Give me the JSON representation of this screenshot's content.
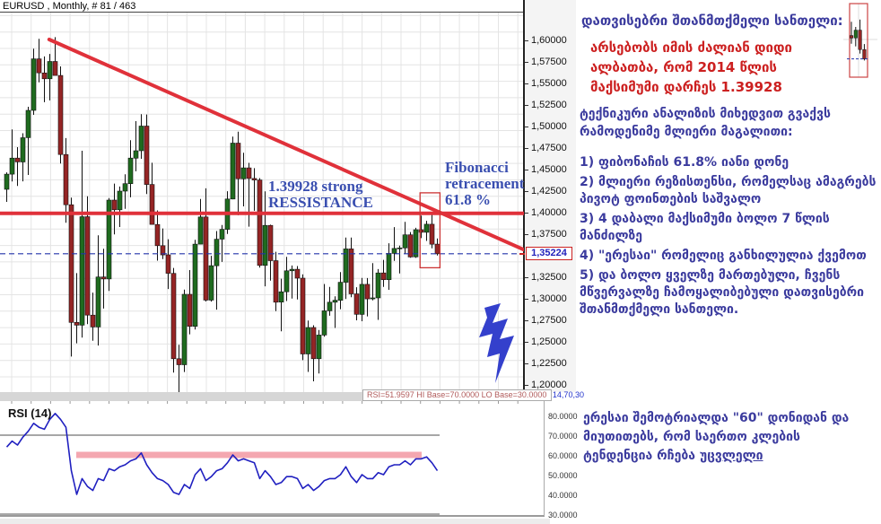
{
  "window": {
    "title": "EURUSD , Monthly, # 81 / 463"
  },
  "colors": {
    "up_candle": "#1f6b1f",
    "down_candle": "#952525",
    "wick": "#111111",
    "trend_red": "#e0313a",
    "annotation_blue": "#3a4fb0",
    "georgian_blue": "#3b3b9e",
    "alert_red": "#cc2020",
    "rsi_line": "#2020c0",
    "pink_band": "#f4a7b0",
    "dashed_blue": "#2233aa",
    "lightning_blue": "#3440cc",
    "grid": "#e4e4e4"
  },
  "price_axis": {
    "labels": [
      {
        "v": 1.6,
        "t": "1,60000"
      },
      {
        "v": 1.575,
        "t": "1,57500"
      },
      {
        "v": 1.55,
        "t": "1,55000"
      },
      {
        "v": 1.525,
        "t": "1,52500"
      },
      {
        "v": 1.5,
        "t": "1,50000"
      },
      {
        "v": 1.475,
        "t": "1,47500"
      },
      {
        "v": 1.45,
        "t": "1,45000"
      },
      {
        "v": 1.425,
        "t": "1,42500"
      },
      {
        "v": 1.4,
        "t": "1,40000"
      },
      {
        "v": 1.375,
        "t": "1,37500"
      },
      {
        "v": 1.325,
        "t": "1,32500"
      },
      {
        "v": 1.3,
        "t": "1,30000"
      },
      {
        "v": 1.275,
        "t": "1,27500"
      },
      {
        "v": 1.25,
        "t": "1,25000"
      },
      {
        "v": 1.225,
        "t": "1,22500"
      },
      {
        "v": 1.2,
        "t": "1,20000"
      }
    ],
    "current_price_label": "1,35224",
    "current_price": 1.35224
  },
  "annotations": {
    "resistance_line1": "1.39928 strong",
    "resistance_line2": "RESSISTANCE",
    "fib_line1": "Fibonacci",
    "fib_line2": "retracement",
    "fib_line3": "61.8 %"
  },
  "rsi_panel": {
    "label": "RSI (14)",
    "status_text": "RSI=51.9597 HI Base=70.0000 LO Base=30.0000",
    "params_text": "14,70,30",
    "axis_labels": [
      {
        "v": 80,
        "t": "80.0000"
      },
      {
        "v": 70,
        "t": "70.0000"
      },
      {
        "v": 60,
        "t": "60.0000"
      },
      {
        "v": 50,
        "t": "50.0000"
      },
      {
        "v": 40,
        "t": "40.0000"
      },
      {
        "v": 30,
        "t": "30.0000"
      }
    ]
  },
  "side_panel": {
    "header": "დათვისებრი შთანმთქმელი სანთელი:",
    "alert_text": "არსებობს იმის ძალიან დიდი ალბათბა, რომ 2014 წლის მაქსიმუმი დარჩეს  1.39928",
    "intro": "ტექნიკური ანალიზის მიხედვით გვაქვს რამოდენიმე მლიერი მაგალითი:",
    "list": [
      "1) ფიბონაჩის 61.8% იანი დონე",
      "2) მლიერი რეზისთენსი, რომელსაც ამაგრებს პივოტ ფოინთების საშვალო",
      "3) 4 დაბალი მაქსიმუმი ბოლო 7 წლის მანძილზე",
      "4) \"ერესაი\" რომელიც განხილულია ქვემოთ",
      "5) და ბოლო ყველზე მართებული, ჩვენს მწვერვალზე ჩამოყალიბებული დათვისებრი შთანმთქმელი სანთელი."
    ],
    "note_part1": "ერესაი შემოტრიალდა \"60\" დონიდან და მიუთითებს, რომ საერთო კლების ტენდენცია რჩება ",
    "note_underlined": "უცვლელი"
  },
  "chart_data": {
    "type": "candlestick",
    "symbol": "EURUSD",
    "timeframe": "Monthly",
    "bars_shown": 81,
    "bars_total": 463,
    "price_range": [
      1.2,
      1.6
    ],
    "resistance_price": 1.39928,
    "current_price": 1.35224,
    "fibonacci_level_pct": 61.8,
    "candles_ohlc": [
      [
        1.4271,
        1.4468,
        1.4125,
        1.4447
      ],
      [
        1.4447,
        1.4966,
        1.4362,
        1.4633
      ],
      [
        1.4633,
        1.476,
        1.4309,
        1.4589
      ],
      [
        1.4589,
        1.4922,
        1.4364,
        1.487
      ],
      [
        1.487,
        1.5229,
        1.4437,
        1.5187
      ],
      [
        1.5187,
        1.5903,
        1.5135,
        1.5785
      ],
      [
        1.5785,
        1.6019,
        1.5512,
        1.5622
      ],
      [
        1.5622,
        1.5814,
        1.5282,
        1.5554
      ],
      [
        1.5554,
        1.5843,
        1.5303,
        1.5755
      ],
      [
        1.5755,
        1.6038,
        1.5611,
        1.5593
      ],
      [
        1.5593,
        1.5698,
        1.457,
        1.4675
      ],
      [
        1.4675,
        1.4866,
        1.3882,
        1.4092
      ],
      [
        1.4092,
        1.4175,
        1.2329,
        1.2726
      ],
      [
        1.2726,
        1.3298,
        1.2483,
        1.2694
      ],
      [
        1.2694,
        1.4719,
        1.2549,
        1.3953
      ],
      [
        1.3953,
        1.4191,
        1.2706,
        1.281
      ],
      [
        1.281,
        1.3072,
        1.2513,
        1.2673
      ],
      [
        1.2673,
        1.3738,
        1.2457,
        1.3253
      ],
      [
        1.3253,
        1.358,
        1.2886,
        1.323
      ],
      [
        1.323,
        1.4169,
        1.3092,
        1.4146
      ],
      [
        1.4146,
        1.4338,
        1.3748,
        1.4033
      ],
      [
        1.4033,
        1.4303,
        1.3833,
        1.425
      ],
      [
        1.425,
        1.4446,
        1.4045,
        1.4336
      ],
      [
        1.4336,
        1.4842,
        1.4178,
        1.4633
      ],
      [
        1.4633,
        1.5063,
        1.448,
        1.4719
      ],
      [
        1.4719,
        1.5144,
        1.4625,
        1.5005
      ],
      [
        1.5005,
        1.514,
        1.4216,
        1.4327
      ],
      [
        1.4327,
        1.4579,
        1.3862,
        1.3863
      ],
      [
        1.3863,
        1.4026,
        1.3443,
        1.3617
      ],
      [
        1.3617,
        1.3817,
        1.3461,
        1.351
      ],
      [
        1.351,
        1.3692,
        1.3114,
        1.3295
      ],
      [
        1.3295,
        1.3358,
        1.2143,
        1.2304
      ],
      [
        1.2304,
        1.2467,
        1.1876,
        1.2234
      ],
      [
        1.2234,
        1.3106,
        1.215,
        1.3052
      ],
      [
        1.3052,
        1.3333,
        1.2588,
        1.268
      ],
      [
        1.268,
        1.3684,
        1.2643,
        1.3634
      ],
      [
        1.3634,
        1.4159,
        1.3634,
        1.395
      ],
      [
        1.395,
        1.4282,
        1.2969,
        1.2984
      ],
      [
        1.2984,
        1.3499,
        1.2968,
        1.3384
      ],
      [
        1.3384,
        1.3786,
        1.2874,
        1.3692
      ],
      [
        1.3692,
        1.3856,
        1.3428,
        1.3806
      ],
      [
        1.3806,
        1.4249,
        1.3752,
        1.4158
      ],
      [
        1.4158,
        1.4882,
        1.4155,
        1.4807
      ],
      [
        1.4807,
        1.494,
        1.397,
        1.4393
      ],
      [
        1.4393,
        1.4696,
        1.4073,
        1.452
      ],
      [
        1.452,
        1.4578,
        1.3837,
        1.4397
      ],
      [
        1.4397,
        1.4517,
        1.4022,
        1.4379
      ],
      [
        1.4379,
        1.4401,
        1.3362,
        1.3387
      ],
      [
        1.3387,
        1.4247,
        1.3145,
        1.3852
      ],
      [
        1.3852,
        1.386,
        1.3211,
        1.3443
      ],
      [
        1.3443,
        1.3546,
        1.2856,
        1.2961
      ],
      [
        1.2961,
        1.3233,
        1.2623,
        1.3081
      ],
      [
        1.3081,
        1.3486,
        1.2974,
        1.3325
      ],
      [
        1.3325,
        1.3386,
        1.3003,
        1.3343
      ],
      [
        1.3343,
        1.338,
        1.2993,
        1.324
      ],
      [
        1.324,
        1.3284,
        1.2288,
        1.236
      ],
      [
        1.236,
        1.2747,
        1.2151,
        1.2667
      ],
      [
        1.2667,
        1.2693,
        1.2042,
        1.2304
      ],
      [
        1.2304,
        1.2637,
        1.2132,
        1.2579
      ],
      [
        1.2579,
        1.3172,
        1.256,
        1.286
      ],
      [
        1.286,
        1.3139,
        1.2803,
        1.296
      ],
      [
        1.296,
        1.3028,
        1.2661,
        1.2983
      ],
      [
        1.2983,
        1.3309,
        1.2879,
        1.3192
      ],
      [
        1.3192,
        1.3711,
        1.2998,
        1.3579
      ],
      [
        1.3579,
        1.371,
        1.3018,
        1.3057
      ],
      [
        1.3057,
        1.3134,
        1.275,
        1.2819
      ],
      [
        1.2819,
        1.3243,
        1.274,
        1.3168
      ],
      [
        1.3168,
        1.3241,
        1.2796,
        1.2999
      ],
      [
        1.2999,
        1.3415,
        1.2982,
        1.301
      ],
      [
        1.301,
        1.3345,
        1.2755,
        1.33
      ],
      [
        1.33,
        1.3452,
        1.3139,
        1.3222
      ],
      [
        1.3222,
        1.3645,
        1.3104,
        1.3527
      ],
      [
        1.3527,
        1.3832,
        1.3441,
        1.3584
      ],
      [
        1.3584,
        1.3617,
        1.3295,
        1.3591
      ],
      [
        1.3591,
        1.3893,
        1.3525,
        1.3743
      ],
      [
        1.3743,
        1.3775,
        1.3477,
        1.3486
      ],
      [
        1.3486,
        1.3824,
        1.3475,
        1.3802
      ],
      [
        1.3802,
        1.3966,
        1.3704,
        1.3772
      ],
      [
        1.3772,
        1.3905,
        1.3672,
        1.3866
      ],
      [
        1.3866,
        1.3993,
        1.3586,
        1.3634
      ],
      [
        1.3634,
        1.37,
        1.3503,
        1.3522
      ]
    ],
    "rsi": {
      "period": 14,
      "hi_base": 70,
      "lo_base": 30,
      "current": 51.9597,
      "highlight_band_level": 60,
      "values": [
        64,
        67,
        65,
        69,
        72,
        76,
        74,
        73,
        78,
        81,
        78,
        74,
        52,
        40,
        48,
        44,
        42,
        48,
        47,
        53,
        52,
        54,
        55,
        57,
        58,
        61,
        55,
        51,
        48,
        47,
        45,
        41,
        40,
        45,
        43,
        50,
        53,
        47,
        49,
        52,
        53,
        56,
        60,
        57,
        58,
        57,
        56,
        48,
        52,
        49,
        45,
        46,
        49,
        49,
        48,
        43,
        45,
        42,
        44,
        47,
        48,
        48,
        50,
        54,
        49,
        46,
        50,
        48,
        48,
        51,
        50,
        54,
        55,
        55,
        57,
        55,
        58,
        58,
        59,
        56,
        52
      ]
    },
    "overlays": {
      "trendline": {
        "from_bar": 8.3,
        "from_price": 1.601,
        "to_bar": 96.5,
        "to_price": 1.357
      },
      "resistance_line_price": 1.39928,
      "current_price_dashed": 1.35224,
      "highlight_box": {
        "from_bar": 77.2,
        "to_bar": 80.9,
        "top_price": 1.423,
        "bottom_price": 1.336
      },
      "inset_bars": [
        77,
        80
      ]
    }
  }
}
